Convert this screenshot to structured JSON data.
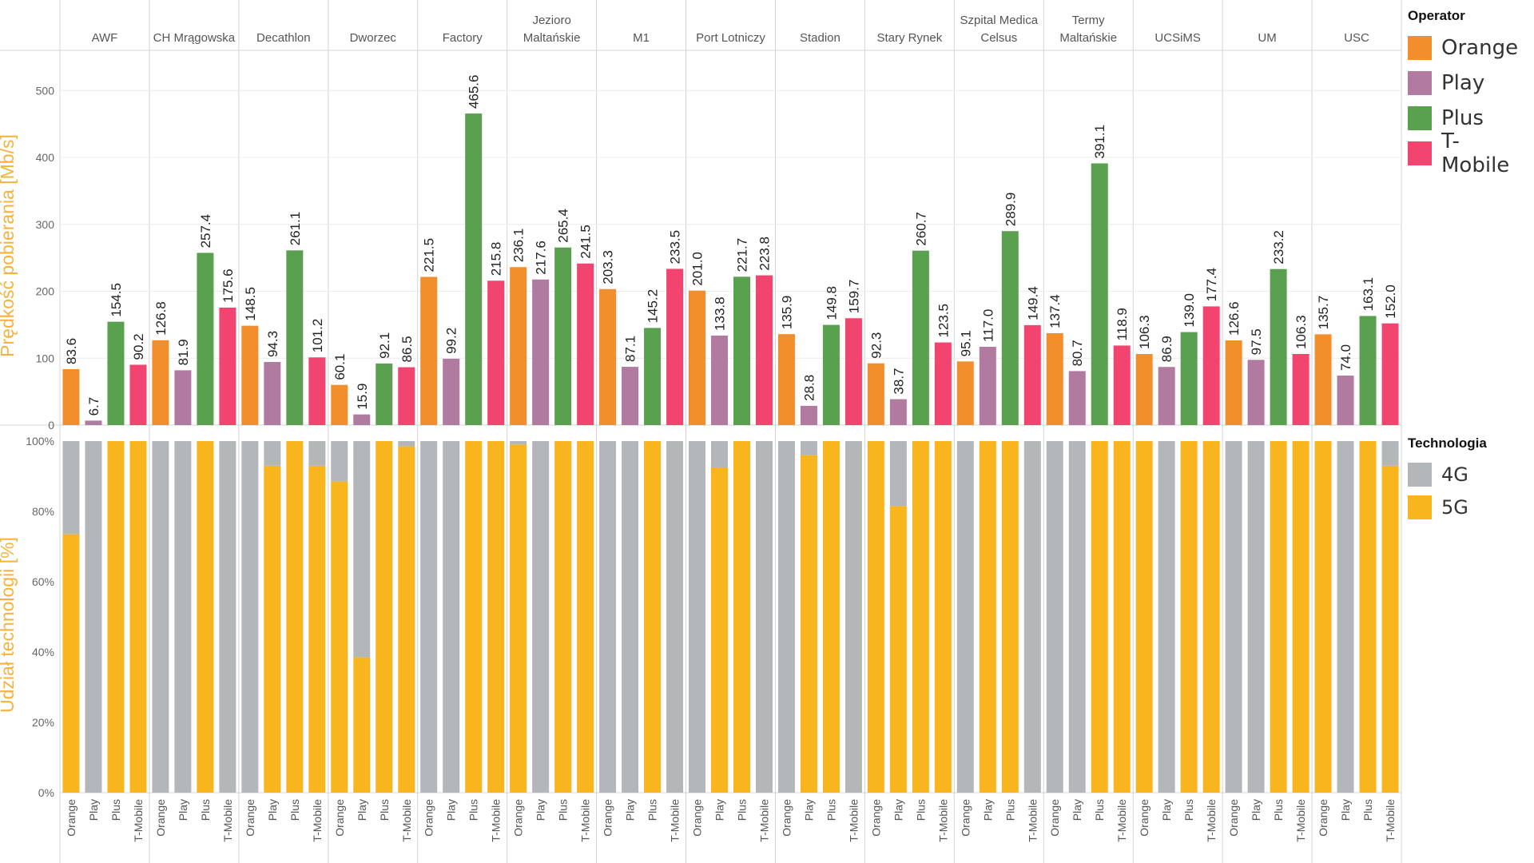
{
  "colors": {
    "Orange": "#f28e2b",
    "Play": "#b07aa1",
    "Plus": "#59a14f",
    "T-Mobile": "#f1456f",
    "4G": "#b4b7ba",
    "5G": "#f9b51e",
    "axis_title": "#f6b23c"
  },
  "chart_data": [
    {
      "type": "bar",
      "ylabel": "Prędkość pobierania [Mb/s]",
      "ylim": [
        0,
        560
      ],
      "yticks": [
        0,
        100,
        200,
        300,
        400,
        500
      ],
      "categories": [
        "AWF",
        "CH Mrągowska",
        "Decathlon",
        "Dworzec",
        "Factory",
        "Jezioro Maltańskie",
        "M1",
        "Port Lotniczy",
        "Stadion",
        "Stary Rynek",
        "Szpital Medica Celsus",
        "Termy Maltańskie",
        "UCSiMS",
        "UM",
        "USC"
      ],
      "operators": [
        "Orange",
        "Play",
        "Plus",
        "T-Mobile"
      ],
      "series": [
        {
          "name": "Orange",
          "values": [
            83.6,
            126.8,
            148.5,
            60.1,
            221.5,
            236.1,
            203.3,
            201.0,
            135.9,
            92.3,
            95.1,
            137.4,
            106.3,
            126.6,
            135.7
          ]
        },
        {
          "name": "Play",
          "values": [
            6.7,
            81.9,
            94.3,
            15.9,
            99.2,
            217.6,
            87.1,
            133.8,
            28.8,
            38.7,
            117.0,
            80.7,
            86.9,
            97.5,
            74.0
          ]
        },
        {
          "name": "Plus",
          "values": [
            154.5,
            257.4,
            261.1,
            92.1,
            465.6,
            265.4,
            145.2,
            221.7,
            149.8,
            260.7,
            289.9,
            391.1,
            139.0,
            233.2,
            163.1
          ]
        },
        {
          "name": "T-Mobile",
          "values": [
            90.2,
            175.6,
            101.2,
            86.5,
            215.8,
            241.5,
            233.5,
            223.8,
            159.7,
            123.5,
            149.4,
            118.9,
            177.4,
            106.3,
            152.0
          ]
        }
      ],
      "value_labels": [
        [
          "83.6",
          "126.8",
          "148.5",
          "60.1",
          "221.5",
          "236.1",
          "203.3",
          "201.0",
          "135.9",
          "92.3",
          "95.1",
          "137.4",
          "106.3",
          "126.6",
          "135.7"
        ],
        [
          "6.7",
          "81.9",
          "94.3",
          "15.9",
          "99.2",
          "217.6",
          "87.1",
          "133.8",
          "28.8",
          "38.7",
          "117.0",
          "80.7",
          "86.9",
          "97.5",
          "74.0"
        ],
        [
          "154.5",
          "257.4",
          "261.1",
          "92.1",
          "465.6",
          "265.4",
          "145.2",
          "221.7",
          "149.8",
          "260.7",
          "289.9",
          "391.1",
          "139.0",
          "233.2",
          "163.1"
        ],
        [
          "90.2",
          "175.6",
          "101.2",
          "86.5",
          "215.8",
          "241.5",
          "233.5",
          "223.8",
          "159.7",
          "123.5",
          "149.4",
          "118.9",
          "177.4",
          "106.3",
          "152.0"
        ]
      ],
      "legend": {
        "title": "Operator",
        "position": "right",
        "items": [
          "Orange",
          "Play",
          "Plus",
          "T-Mobile"
        ]
      }
    },
    {
      "type": "bar",
      "stacked": true,
      "ylabel": "Udział technologii [%]",
      "ylim": [
        0,
        100
      ],
      "yticks": [
        "0%",
        "20%",
        "40%",
        "60%",
        "80%",
        "100%"
      ],
      "categories": [
        "AWF",
        "CH Mrągowska",
        "Decathlon",
        "Dworzec",
        "Factory",
        "Jezioro Maltańskie",
        "M1",
        "Port Lotniczy",
        "Stadion",
        "Stary Rynek",
        "Szpital Medica Celsus",
        "Termy Maltańskie",
        "UCSiMS",
        "UM",
        "USC"
      ],
      "operators": [
        "Orange",
        "Play",
        "Plus",
        "T-Mobile"
      ],
      "series": [
        {
          "name": "5G",
          "values": [
            [
              73.5,
              0,
              100,
              100
            ],
            [
              0,
              0,
              100,
              0
            ],
            [
              0,
              93,
              100,
              93
            ],
            [
              88.5,
              38.5,
              100,
              98.5
            ],
            [
              0,
              0,
              100,
              100
            ],
            [
              99,
              0,
              100,
              100
            ],
            [
              0,
              0,
              100,
              0
            ],
            [
              0,
              92.5,
              100,
              0
            ],
            [
              0,
              96,
              100,
              0
            ],
            [
              100,
              81.5,
              100,
              100
            ],
            [
              0,
              100,
              100,
              0
            ],
            [
              0,
              0,
              100,
              100
            ],
            [
              100,
              0,
              100,
              100
            ],
            [
              0,
              0,
              100,
              100
            ],
            [
              100,
              0,
              100,
              93
            ]
          ]
        },
        {
          "name": "4G",
          "values": [
            [
              26.5,
              100,
              0,
              0
            ],
            [
              100,
              100,
              0,
              100
            ],
            [
              100,
              7,
              0,
              7
            ],
            [
              11.5,
              61.5,
              0,
              1.5
            ],
            [
              100,
              100,
              0,
              0
            ],
            [
              1,
              100,
              0,
              0
            ],
            [
              100,
              100,
              0,
              100
            ],
            [
              100,
              7.5,
              0,
              100
            ],
            [
              100,
              4,
              0,
              100
            ],
            [
              0,
              18.5,
              0,
              0
            ],
            [
              100,
              0,
              0,
              100
            ],
            [
              100,
              100,
              0,
              0
            ],
            [
              0,
              100,
              0,
              0
            ],
            [
              100,
              100,
              0,
              0
            ],
            [
              0,
              100,
              0,
              7
            ]
          ]
        }
      ],
      "legend": {
        "title": "Technologia",
        "position": "right",
        "items": [
          "4G",
          "5G"
        ]
      }
    }
  ]
}
